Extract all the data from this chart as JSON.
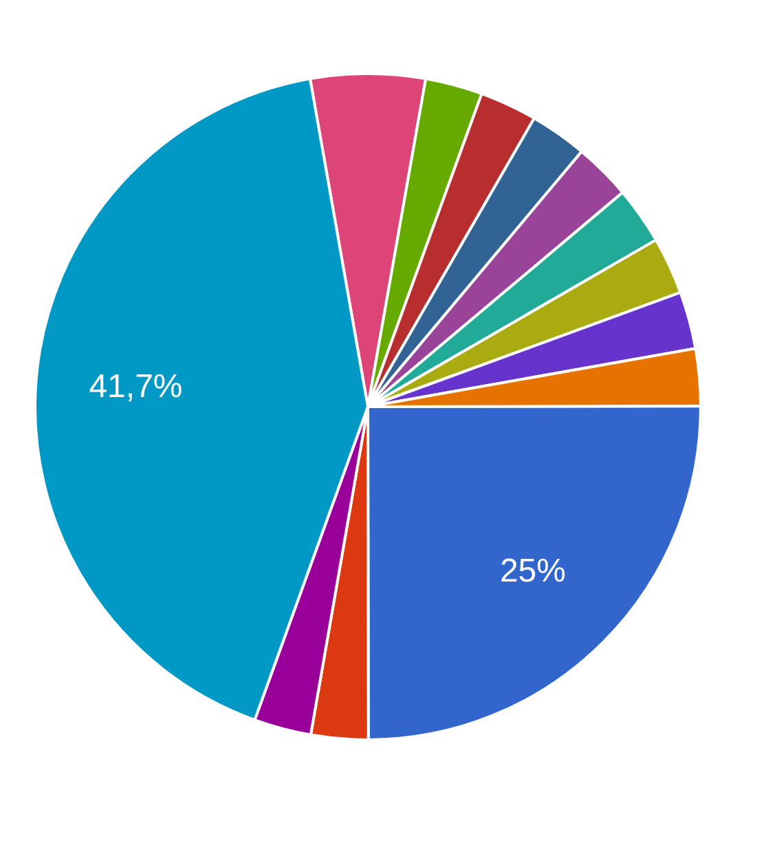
{
  "chart_data": {
    "type": "pie",
    "categories": [
      null,
      null,
      null,
      null,
      null,
      null,
      null,
      null,
      null,
      null,
      null,
      null,
      null
    ],
    "values": [
      5.56,
      2.774,
      2.774,
      2.774,
      2.774,
      2.774,
      2.774,
      2.774,
      2.774,
      25,
      2.774,
      2.774,
      41.7
    ],
    "colors": [
      "#dd4477",
      "#66aa00",
      "#b82e2e",
      "#316395",
      "#994499",
      "#22aa99",
      "#aaaa11",
      "#6633cc",
      "#e67300",
      "#3366cc",
      "#dc3912",
      "#990099",
      "#0099c6"
    ],
    "value_labels": [
      null,
      null,
      null,
      null,
      null,
      null,
      null,
      null,
      null,
      "25%",
      null,
      null,
      "41,7%"
    ]
  }
}
